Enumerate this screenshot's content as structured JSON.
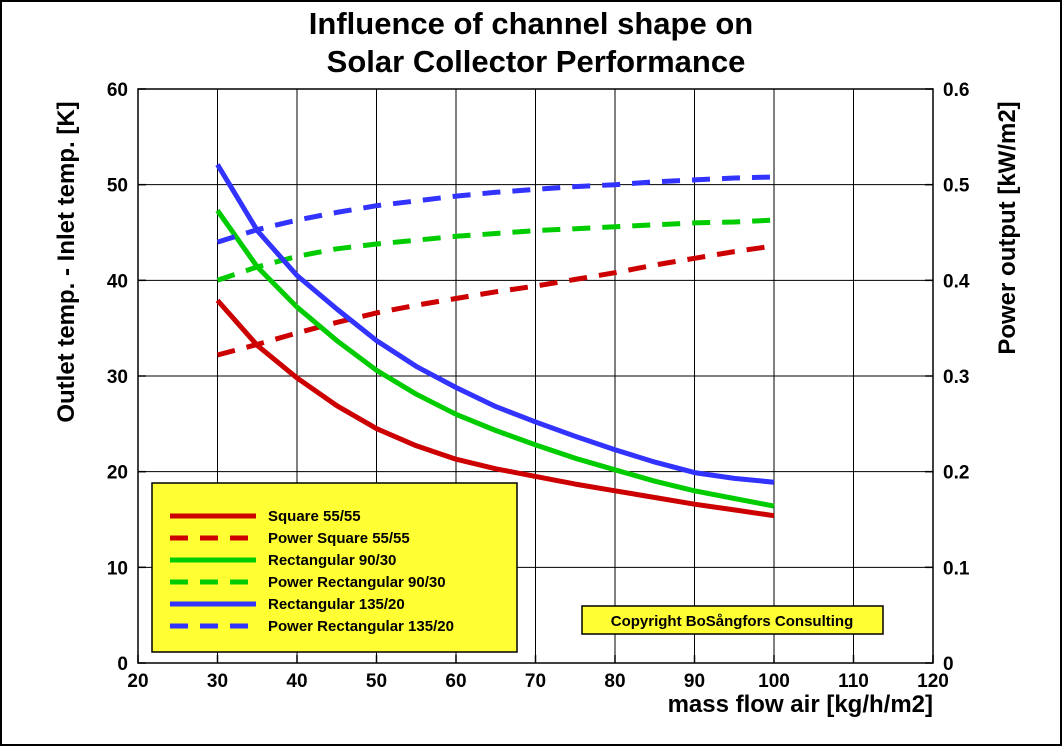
{
  "chart_data": {
    "type": "line",
    "title": [
      "Influence of channel shape on",
      "Solar Collector Performance"
    ],
    "xlabel": "mass flow air [kg/h/m2]",
    "ylabel": "Outlet temp. - Inlet temp. [K]",
    "y2label": "Power output [kW/m2]",
    "xlim": [
      20,
      120
    ],
    "ylim": [
      0,
      60
    ],
    "y2lim": [
      0,
      0.6
    ],
    "x_ticks": [
      "20",
      "30",
      "40",
      "50",
      "60",
      "70",
      "80",
      "90",
      "100",
      "110",
      "120"
    ],
    "y_ticks": [
      "0",
      "10",
      "20",
      "30",
      "40",
      "50",
      "60"
    ],
    "y2_ticks": [
      "0",
      "0.1",
      "0.2",
      "0.3",
      "0.4",
      "0.5",
      "0.6"
    ],
    "grid": true,
    "legend_position": "bottom-left",
    "x": [
      30,
      35,
      40,
      45,
      50,
      55,
      60,
      65,
      70,
      75,
      80,
      85,
      90,
      95,
      100
    ],
    "series": [
      {
        "name": "Square 55/55",
        "axis": "left",
        "style": "solid",
        "color": "#cc0000",
        "values": [
          37.9,
          33.2,
          29.8,
          26.9,
          24.5,
          22.7,
          21.3,
          20.3,
          19.5,
          18.7,
          18.0,
          17.3,
          16.6,
          16.0,
          15.4
        ]
      },
      {
        "name": "Power Square 55/55",
        "axis": "right",
        "style": "dashed",
        "color": "#cc0000",
        "values": [
          0.322,
          0.333,
          0.345,
          0.356,
          0.366,
          0.374,
          0.381,
          0.388,
          0.394,
          0.401,
          0.408,
          0.416,
          0.423,
          0.43,
          0.436
        ]
      },
      {
        "name": "Rectangular 90/30",
        "axis": "left",
        "style": "solid",
        "color": "#00cc00",
        "values": [
          47.3,
          41.4,
          37.2,
          33.7,
          30.6,
          28.1,
          26.0,
          24.3,
          22.8,
          21.4,
          20.2,
          19.0,
          18.0,
          17.2,
          16.4
        ]
      },
      {
        "name": "Power Rectangular 90/30",
        "axis": "right",
        "style": "dashed",
        "color": "#00cc00",
        "values": [
          0.4,
          0.414,
          0.425,
          0.433,
          0.438,
          0.442,
          0.446,
          0.449,
          0.452,
          0.454,
          0.456,
          0.458,
          0.46,
          0.461,
          0.463
        ]
      },
      {
        "name": "Rectangular 135/20",
        "axis": "left",
        "style": "solid",
        "color": "#3333ff",
        "values": [
          52.1,
          45.2,
          40.5,
          37.0,
          33.7,
          31.0,
          28.8,
          26.8,
          25.2,
          23.7,
          22.3,
          21.0,
          19.9,
          19.3,
          18.9
        ]
      },
      {
        "name": "Power Rectangular 135/20",
        "axis": "right",
        "style": "dashed",
        "color": "#3333ff",
        "values": [
          0.44,
          0.453,
          0.463,
          0.471,
          0.478,
          0.483,
          0.488,
          0.492,
          0.495,
          0.498,
          0.5,
          0.503,
          0.505,
          0.507,
          0.508
        ]
      }
    ]
  },
  "legend": {
    "items": [
      {
        "label": "Square 55/55",
        "color": "#cc0000",
        "style": "solid"
      },
      {
        "label": "Power Square 55/55",
        "color": "#cc0000",
        "style": "dashed"
      },
      {
        "label": "Rectangular 90/30",
        "color": "#00cc00",
        "style": "solid"
      },
      {
        "label": "Power Rectangular 90/30",
        "color": "#00cc00",
        "style": "dashed"
      },
      {
        "label": "Rectangular 135/20",
        "color": "#3333ff",
        "style": "solid"
      },
      {
        "label": "Power Rectangular 135/20",
        "color": "#3333ff",
        "style": "dashed"
      }
    ],
    "background": "#ffff33"
  },
  "copyright": {
    "text": "Copyright BoSångfors Consulting",
    "background": "#ffff33"
  }
}
